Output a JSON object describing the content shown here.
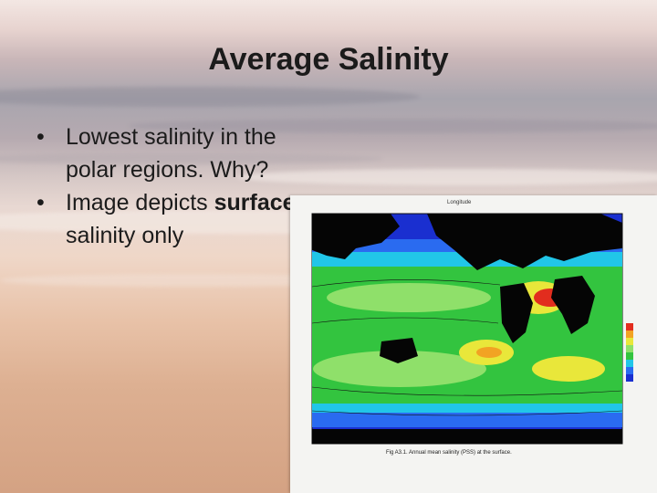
{
  "slide": {
    "title": "Average Salinity",
    "bullets": [
      {
        "marker": "•",
        "text": "Lowest salinity in the polar regions. Why?"
      },
      {
        "marker": "•",
        "pre": "Image depicts ",
        "emph": "surface",
        "post": " salinity only"
      }
    ]
  },
  "figure": {
    "header": "Longitude",
    "caption": "Fig A3.1. Annual mean salinity (PSS) at the surface.",
    "colors": {
      "deep_blue": "#1a2fd0",
      "blue": "#2a6bf0",
      "cyan": "#21c6e8",
      "green": "#33c43f",
      "light_green": "#8fe06a",
      "yellow": "#e9e73a",
      "orange": "#f2a323",
      "red": "#e22d1e",
      "land": "#050505"
    }
  }
}
